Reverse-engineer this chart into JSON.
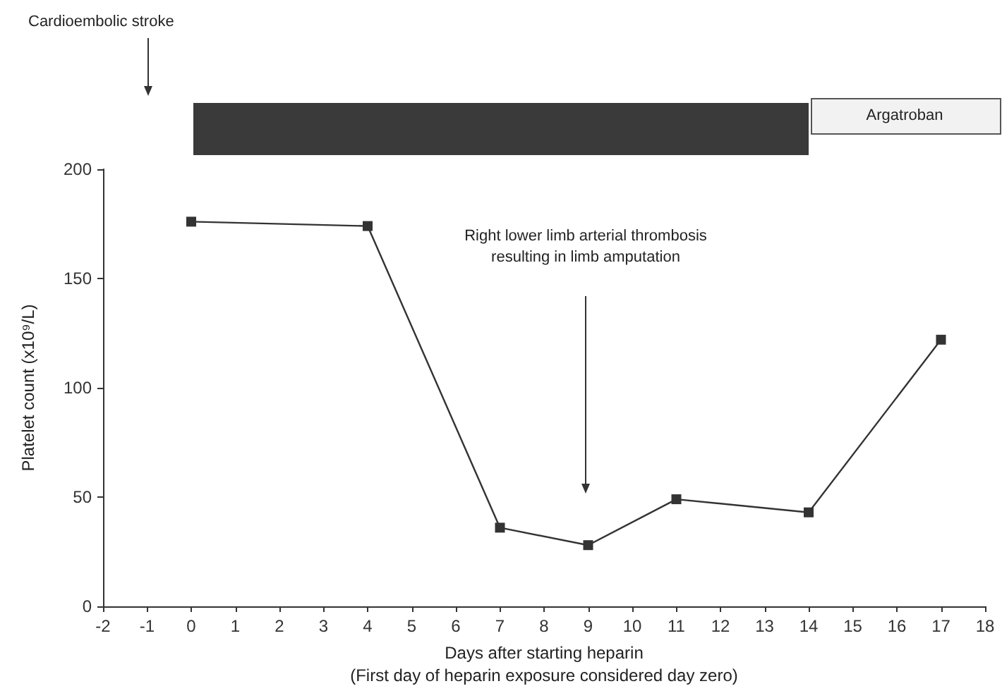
{
  "chart_data": {
    "type": "line",
    "xlabel": "Days after starting heparin\n(First day of heparin exposure considered day zero)",
    "ylabel": "Platelet count (x10⁹/L)",
    "x": [
      0,
      4,
      7,
      9,
      11,
      14,
      17
    ],
    "series": [
      {
        "color": "#333333",
        "values": [
          176,
          174,
          36,
          28,
          49,
          43,
          122
        ]
      }
    ],
    "xlim": [
      -2,
      18
    ],
    "xticks": [
      -2,
      -1,
      0,
      1,
      2,
      3,
      4,
      5,
      6,
      7,
      8,
      9,
      10,
      11,
      12,
      13,
      14,
      15,
      16,
      17,
      18
    ],
    "ylim": [
      0,
      200
    ],
    "yticks": [
      0,
      50,
      100,
      150,
      200
    ],
    "marker": "square",
    "line_style": "solid",
    "grid": false,
    "annotations": [
      "Cardioembolic stroke",
      "Right lower limb arterial thrombosis\nresulting in limb amputation",
      "Argatroban"
    ]
  }
}
